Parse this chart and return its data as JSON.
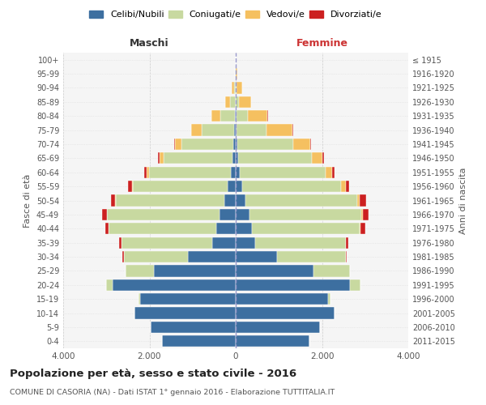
{
  "age_groups": [
    "0-4",
    "5-9",
    "10-14",
    "15-19",
    "20-24",
    "25-29",
    "30-34",
    "35-39",
    "40-44",
    "45-49",
    "50-54",
    "55-59",
    "60-64",
    "65-69",
    "70-74",
    "75-79",
    "80-84",
    "85-89",
    "90-94",
    "95-99",
    "100+"
  ],
  "birth_years": [
    "2011-2015",
    "2006-2010",
    "2001-2005",
    "1996-2000",
    "1991-1995",
    "1986-1990",
    "1981-1985",
    "1976-1980",
    "1971-1975",
    "1966-1970",
    "1961-1965",
    "1956-1960",
    "1951-1955",
    "1946-1950",
    "1941-1945",
    "1936-1940",
    "1931-1935",
    "1926-1930",
    "1921-1925",
    "1916-1920",
    "≤ 1915"
  ],
  "males_celibi": [
    1700,
    1970,
    2350,
    2220,
    2850,
    1900,
    1100,
    550,
    450,
    380,
    270,
    180,
    110,
    80,
    50,
    30,
    15,
    8,
    2,
    1,
    1
  ],
  "males_coniugati": [
    0,
    0,
    0,
    30,
    150,
    650,
    1500,
    2100,
    2500,
    2600,
    2500,
    2200,
    1900,
    1600,
    1200,
    750,
    350,
    120,
    40,
    10,
    2
  ],
  "males_vedovi": [
    0,
    0,
    0,
    0,
    0,
    0,
    0,
    0,
    0,
    10,
    20,
    30,
    50,
    80,
    150,
    250,
    200,
    120,
    50,
    15,
    3
  ],
  "males_divorziati": [
    0,
    0,
    0,
    0,
    0,
    5,
    20,
    50,
    80,
    100,
    100,
    80,
    60,
    40,
    20,
    10,
    5,
    2,
    0,
    0,
    0
  ],
  "females_nubili": [
    1700,
    1950,
    2300,
    2150,
    2650,
    1800,
    950,
    450,
    380,
    320,
    220,
    150,
    90,
    60,
    30,
    20,
    10,
    3,
    1,
    0,
    0
  ],
  "females_coniugate": [
    0,
    0,
    0,
    50,
    250,
    850,
    1600,
    2100,
    2500,
    2600,
    2600,
    2300,
    2000,
    1700,
    1300,
    700,
    280,
    80,
    20,
    5,
    1
  ],
  "females_vedove": [
    0,
    0,
    0,
    0,
    0,
    0,
    0,
    10,
    20,
    30,
    50,
    100,
    150,
    250,
    400,
    600,
    450,
    280,
    120,
    40,
    8
  ],
  "females_divorziate": [
    0,
    0,
    0,
    0,
    0,
    5,
    20,
    50,
    100,
    130,
    150,
    80,
    60,
    30,
    15,
    5,
    2,
    1,
    0,
    0,
    0
  ],
  "color_celibi": "#3d6fa0",
  "color_coniugati": "#c8d9a0",
  "color_vedovi": "#f5c060",
  "color_divorziati": "#cc2020",
  "xlim": 4000,
  "title": "Popolazione per età, sesso e stato civile - 2016",
  "subtitle": "COMUNE DI CASORIA (NA) - Dati ISTAT 1° gennaio 2016 - Elaborazione TUTTITALIA.IT",
  "ylabel_left": "Fasce di età",
  "ylabel_right": "Anni di nascita",
  "xlabel_maschi": "Maschi",
  "xlabel_femmine": "Femmine",
  "legend_labels": [
    "Celibi/Nubili",
    "Coniugati/e",
    "Vedovi/e",
    "Divorziati/e"
  ],
  "bg_color": "#f5f5f5",
  "xtick_labels": [
    "4.000",
    "2.000",
    "0",
    "2.000",
    "4.000"
  ]
}
